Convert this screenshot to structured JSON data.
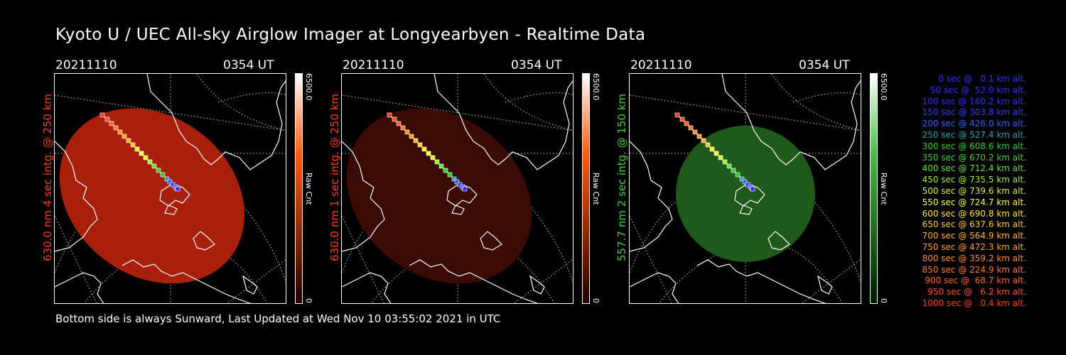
{
  "title": "Kyoto U / UEC All-sky Airglow Imager at Longyearbyen - Realtime Data",
  "footer": "Bottom side is always Sunward, Last Updated at Wed Nov 10 03:55:02 2021 in UTC",
  "panels": [
    {
      "date": "20211110",
      "time": "0354 UT",
      "side_label": "630.0 nm 4 sec intg. @ 250 km",
      "side_color": "#ff3a1a",
      "cbar_max": "6500.0",
      "cbar_min": "0",
      "cbar_unit": "Raw Cnt",
      "cbar_top_color": "#ffffff",
      "cbar_mid_color": "#ff5a10",
      "cbar_bot_color": "#200000",
      "disk_color": "#a8200c",
      "disk_opacity": 1.0
    },
    {
      "date": "20211110",
      "time": "0354 UT",
      "side_label": "630.0 nm 1 sec intg. @ 250 km",
      "side_color": "#ff3a1a",
      "cbar_max": "6500.0",
      "cbar_min": "0",
      "cbar_unit": "Raw Cnt",
      "cbar_top_color": "#ffffff",
      "cbar_mid_color": "#ff5a10",
      "cbar_bot_color": "#200000",
      "disk_color": "#3a0a05",
      "disk_opacity": 1.0
    },
    {
      "date": "20211110",
      "time": "0354 UT",
      "side_label": "557.7 nm 2 sec intg. @ 150 km",
      "side_color": "#3cd23c",
      "cbar_max": "6500.0",
      "cbar_min": "0",
      "cbar_unit": "Raw Cnt",
      "cbar_top_color": "#ffffff",
      "cbar_mid_color": "#40c040",
      "cbar_bot_color": "#001a00",
      "disk_color": "#1f5a1a",
      "disk_opacity": 1.0
    }
  ],
  "legend": [
    {
      "label": "0 sec @   0.1 km alt.",
      "color": "#3030ff"
    },
    {
      "label": "50 sec @  52.0 km alt.",
      "color": "#3030ff"
    },
    {
      "label": "100 sec @ 160.2 km alt.",
      "color": "#3030ff"
    },
    {
      "label": "150 sec @ 303.8 km alt.",
      "color": "#3040ff"
    },
    {
      "label": "200 sec @ 426.0 km alt.",
      "color": "#3060ff"
    },
    {
      "label": "250 sec @ 527.4 km alt.",
      "color": "#28a0b4"
    },
    {
      "label": "300 sec @ 608.6 km alt.",
      "color": "#28d228"
    },
    {
      "label": "350 sec @ 670.2 km alt.",
      "color": "#3cd23c"
    },
    {
      "label": "400 sec @ 712.4 km alt.",
      "color": "#64e632"
    },
    {
      "label": "450 sec @ 735.5 km alt.",
      "color": "#a0f032"
    },
    {
      "label": "500 sec @ 739.6 km alt.",
      "color": "#dcf03c"
    },
    {
      "label": "550 sec @ 724.7 km alt.",
      "color": "#ffff3c"
    },
    {
      "label": "600 sec @ 690.8 km alt.",
      "color": "#ffe632"
    },
    {
      "label": "650 sec @ 637.6 km alt.",
      "color": "#ffc832"
    },
    {
      "label": "700 sec @ 564.9 km alt.",
      "color": "#ffb432"
    },
    {
      "label": "750 sec @ 472.3 km alt.",
      "color": "#ffa028"
    },
    {
      "label": "800 sec @ 359.2 km alt.",
      "color": "#ff8c28"
    },
    {
      "label": "850 sec @ 224.9 km alt.",
      "color": "#ff7828"
    },
    {
      "label": "900 sec @  68.7 km alt.",
      "color": "#ff6428"
    },
    {
      "label": "950 sec @   6.2 km alt.",
      "color": "#ff5028"
    },
    {
      "label": "1000 sec @   0.4 km alt.",
      "color": "#ff3c1e"
    }
  ]
}
